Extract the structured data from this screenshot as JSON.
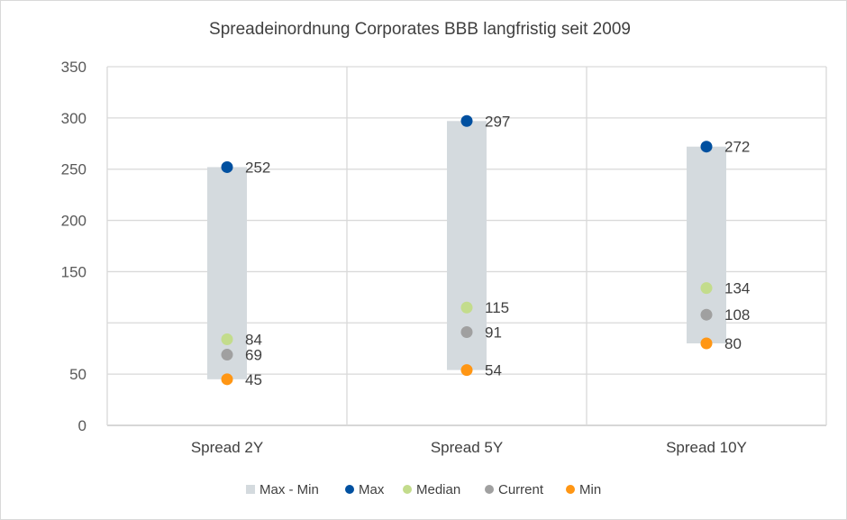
{
  "chart_data": {
    "type": "scatter",
    "title": "Spreadeinordnung Corporates BBB langfristig seit 2009",
    "xlabel": "",
    "ylabel": "",
    "ylim": [
      0,
      350
    ],
    "yticks": [
      0,
      50,
      100,
      150,
      200,
      250,
      300,
      350
    ],
    "ytick_labels": [
      "0",
      "50",
      "",
      "150",
      "200",
      "250",
      "300",
      "350"
    ],
    "grid": true,
    "legend_position": "bottom",
    "categories": [
      "Spread 2Y",
      "Spread 5Y",
      "Spread 10Y"
    ],
    "range_series": {
      "name": "Max - Min",
      "color": "#d4dade"
    },
    "series": [
      {
        "name": "Max",
        "color": "#0050a0",
        "values": [
          252,
          297,
          272
        ]
      },
      {
        "name": "Median",
        "color": "#c3dc8c",
        "values": [
          84,
          115,
          134
        ]
      },
      {
        "name": "Current",
        "color": "#a0a0a0",
        "values": [
          69,
          91,
          108
        ]
      },
      {
        "name": "Min",
        "color": "#ff9614",
        "values": [
          45,
          54,
          80
        ]
      }
    ]
  }
}
